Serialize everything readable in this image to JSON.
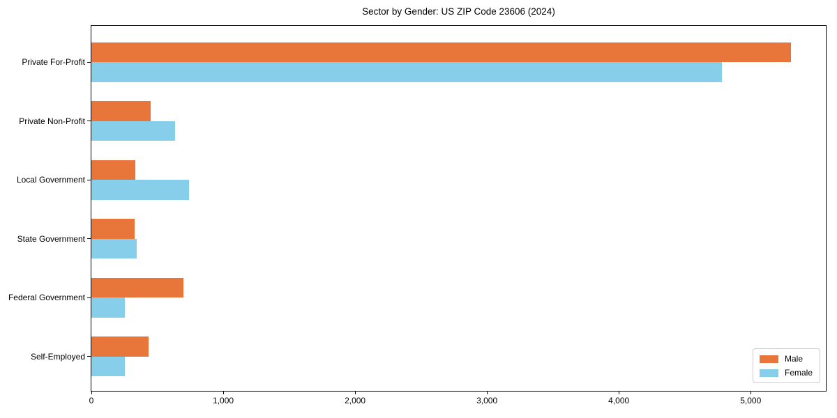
{
  "title": "Sector by Gender: US ZIP Code 23606 (2024)",
  "chart_data": {
    "type": "bar",
    "orientation": "horizontal",
    "title": "Sector by Gender: US ZIP Code 23606 (2024)",
    "categories": [
      "Private For-Profit",
      "Private Non-Profit",
      "Local Government",
      "State Government",
      "Federal Government",
      "Self-Employed"
    ],
    "series": [
      {
        "name": "Male",
        "color": "#e8763a",
        "values": [
          5305,
          450,
          335,
          330,
          700,
          435
        ]
      },
      {
        "name": "Female",
        "color": "#87ceeb",
        "values": [
          4780,
          635,
          740,
          345,
          255,
          255
        ]
      }
    ],
    "xlabel": "",
    "ylabel": "",
    "xlim": [
      0,
      5570
    ],
    "x_ticks": [
      0,
      1000,
      2000,
      3000,
      4000,
      5000
    ],
    "x_tick_labels": [
      "0",
      "1,000",
      "2,000",
      "3,000",
      "4,000",
      "5,000"
    ],
    "grid": false,
    "legend_position": "lower right",
    "frame": "full-box"
  },
  "legend": {
    "items": [
      {
        "label": "Male",
        "color": "#e8763a"
      },
      {
        "label": "Female",
        "color": "#87ceeb"
      }
    ]
  }
}
